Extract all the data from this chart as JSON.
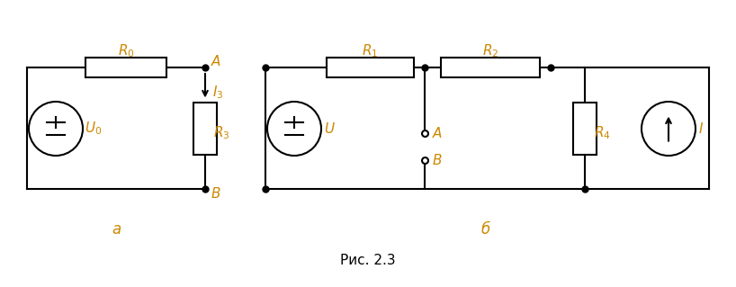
{
  "bg_color": "#ffffff",
  "line_color": "#000000",
  "label_color": "#cc8800",
  "fig_caption": "Рис. 2.3",
  "fig_width": 8.18,
  "fig_height": 3.19,
  "dpi": 100
}
